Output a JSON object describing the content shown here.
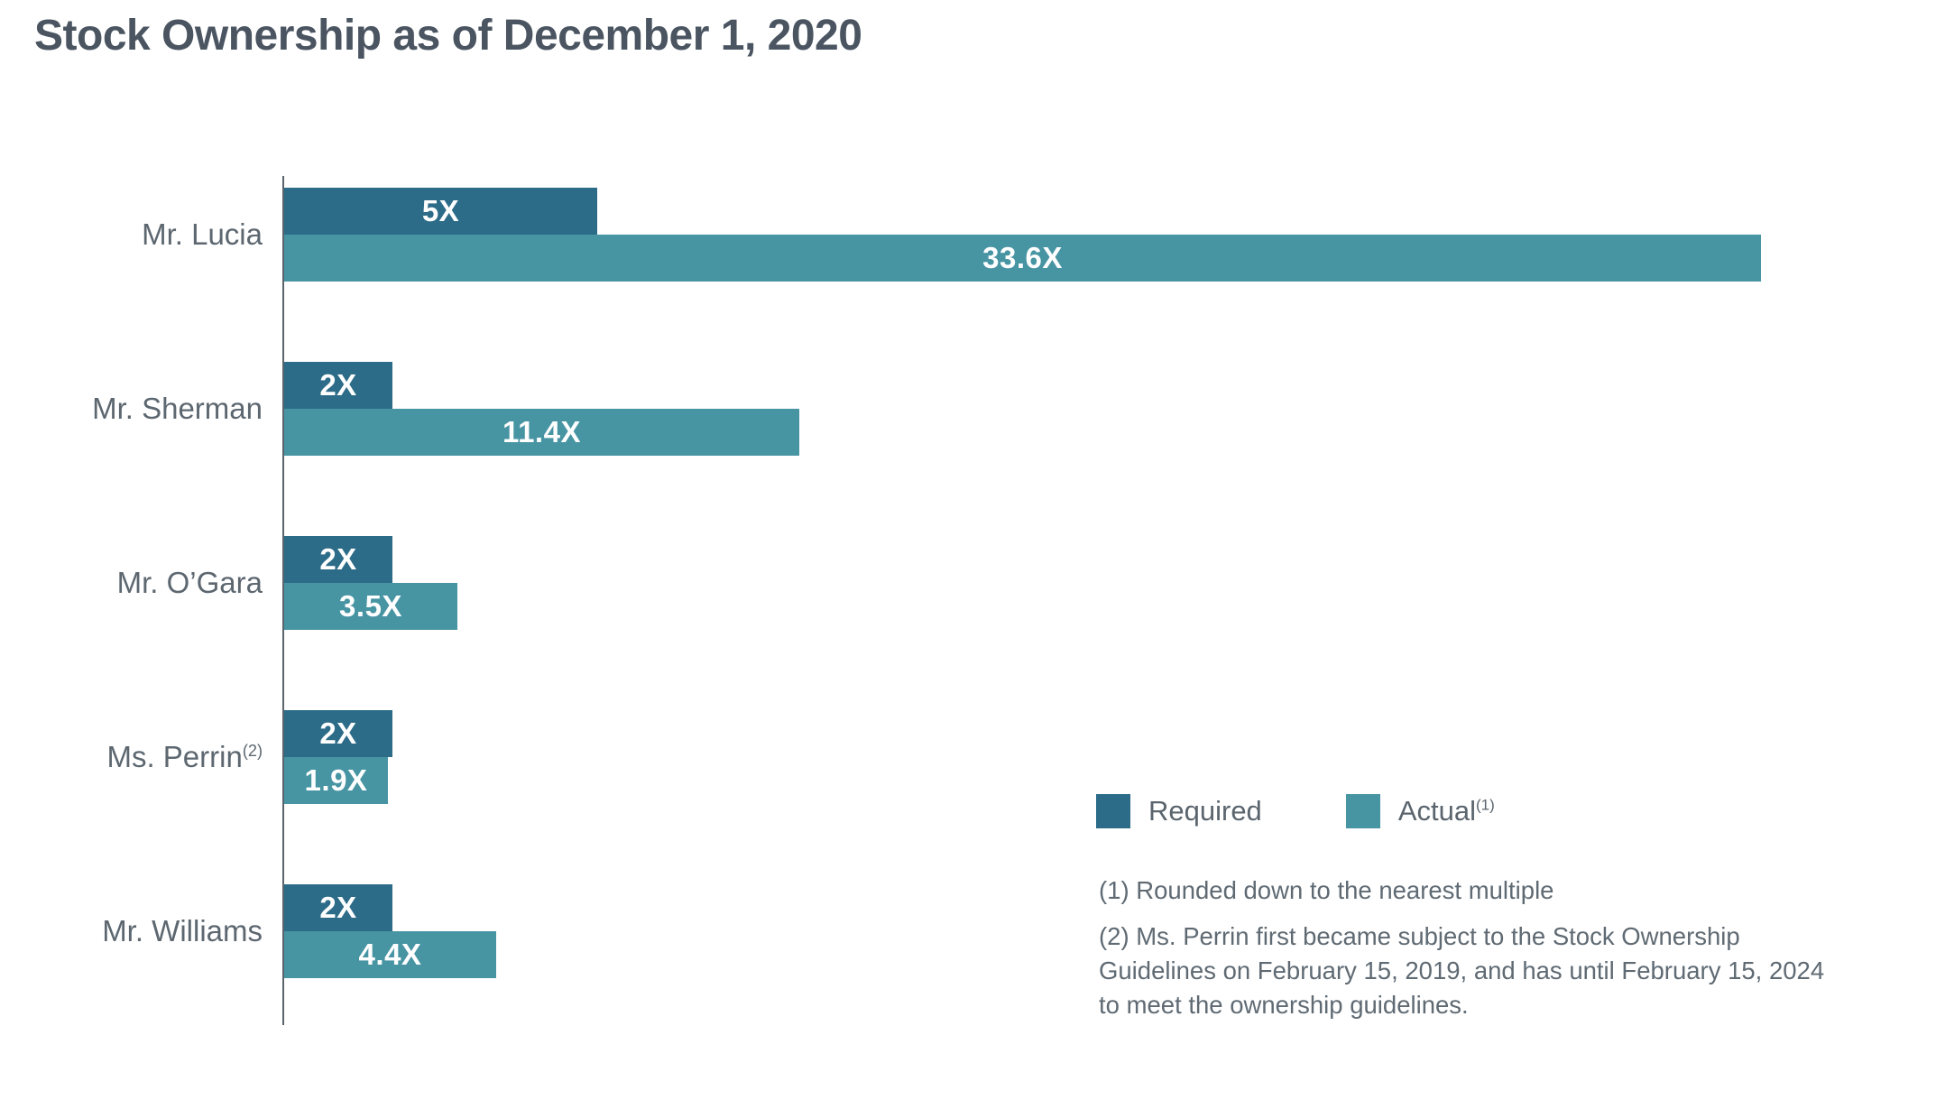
{
  "title": "Stock Ownership as of December 1, 2020",
  "chart_data": {
    "type": "bar",
    "orientation": "horizontal",
    "title": "Stock Ownership as of December 1, 2020",
    "categories": [
      "Mr. Lucia",
      "Mr. Sherman",
      "Mr. O’Gara",
      "Ms. Perrin",
      "Mr. Williams"
    ],
    "category_superscripts": [
      "",
      "",
      "",
      "(2)",
      ""
    ],
    "series": [
      {
        "name": "Required",
        "color": "#2D6C88",
        "values": [
          5,
          2,
          2,
          2,
          2
        ],
        "labels": [
          "5X",
          "2X",
          "2X",
          "2X",
          "2X"
        ]
      },
      {
        "name": "Actual",
        "superscript": "(1)",
        "color": "#4794A3",
        "values": [
          33.6,
          11.4,
          3.5,
          1.9,
          4.4
        ],
        "labels": [
          "33.6X",
          "11.4X",
          "3.5X",
          "1.9X",
          "4.4X"
        ]
      }
    ],
    "value_suffix": "X",
    "xlim": [
      0,
      34
    ],
    "grid": false,
    "legend_position": "right-lower",
    "legend": [
      {
        "label": "Required",
        "superscript": ""
      },
      {
        "label": "Actual",
        "superscript": "(1)"
      }
    ]
  },
  "footnotes": [
    "(1) Rounded down to the nearest multiple",
    "(2) Ms. Perrin first became subject to the Stock Ownership Guidelines on February 15, 2019, and has until February 15, 2024 to meet the ownership guidelines."
  ],
  "colors": {
    "required": "#2D6C88",
    "actual": "#4794A3",
    "title_text": "#4A5561",
    "label_text": "#5D6770",
    "footnote_text": "#5F6A73",
    "axis_line": "#5A646C",
    "bar_value_text": "#FFFFFF",
    "background": "#FFFFFF"
  }
}
